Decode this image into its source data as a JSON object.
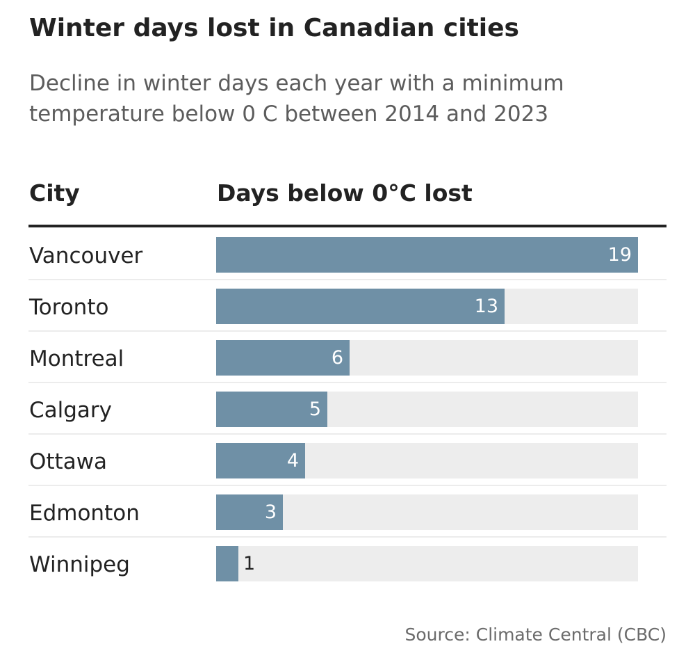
{
  "title": "Winter days lost in Canadian cities",
  "subtitle": "Decline in winter days each year with a minimum temperature below 0 C between 2014 and 2023",
  "source": "Source: Climate Central (CBC)",
  "colors": {
    "bar": "#6f90a6",
    "track": "#ededed",
    "rule": "#222222"
  },
  "chart_data": {
    "type": "bar",
    "orientation": "horizontal",
    "column_headers": [
      "City",
      "Days below 0°C lost"
    ],
    "categories": [
      "Vancouver",
      "Toronto",
      "Montreal",
      "Calgary",
      "Ottawa",
      "Edmonton",
      "Winnipeg"
    ],
    "values": [
      19,
      13,
      6,
      5,
      4,
      3,
      1
    ],
    "xlim": [
      0,
      19
    ],
    "grid": false,
    "legend": "none"
  }
}
